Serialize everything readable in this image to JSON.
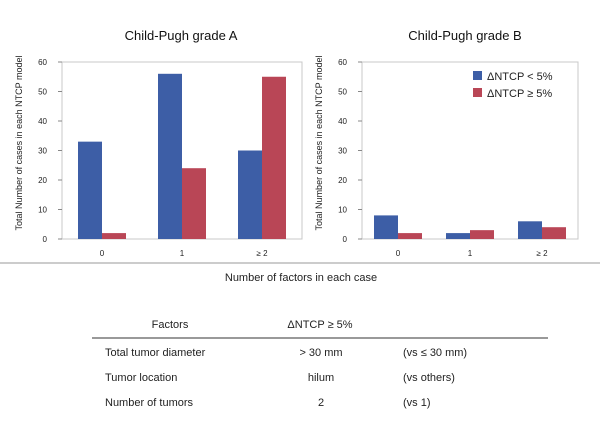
{
  "colors": {
    "blue": "#3d5ea6",
    "red": "#b94656",
    "frame": "#c8c8c8",
    "axis": "#888888"
  },
  "chart_data": [
    {
      "type": "bar",
      "title": "Child-Pugh grade A",
      "ylabel": "Total Number of cases in each NTCP model",
      "categories": [
        "0",
        "1",
        "≥ 2"
      ],
      "ylim": [
        0,
        60
      ],
      "yticks": [
        0,
        10,
        20,
        30,
        40,
        50,
        60
      ],
      "series": [
        {
          "name": "ΔNTCP < 5%",
          "color": "#3d5ea6",
          "values": [
            33,
            56,
            30
          ]
        },
        {
          "name": "ΔNTCP ≥ 5%",
          "color": "#b94656",
          "values": [
            2,
            24,
            55
          ]
        }
      ],
      "legend": "none"
    },
    {
      "type": "bar",
      "title": "Child-Pugh grade B",
      "ylabel": "Total Number of cases in each NTCP model",
      "categories": [
        "0",
        "1",
        "≥ 2"
      ],
      "ylim": [
        0,
        60
      ],
      "yticks": [
        0,
        10,
        20,
        30,
        40,
        50,
        60
      ],
      "series": [
        {
          "name": "ΔNTCP < 5%",
          "color": "#3d5ea6",
          "values": [
            8,
            2,
            6
          ]
        },
        {
          "name": "ΔNTCP ≥ 5%",
          "color": "#b94656",
          "values": [
            2,
            3,
            4
          ]
        }
      ],
      "legend": "top-right"
    }
  ],
  "shared_xlabel": "Number of factors in each case",
  "factors_table": {
    "headers": [
      "Factors",
      "ΔNTCP ≥ 5%",
      ""
    ],
    "rows": [
      [
        "Total tumor diameter",
        "> 30 mm",
        "(vs ≤ 30 mm)"
      ],
      [
        "Tumor location",
        "hilum",
        "(vs others)"
      ],
      [
        "Number of tumors",
        "2",
        "(vs 1)"
      ]
    ]
  }
}
